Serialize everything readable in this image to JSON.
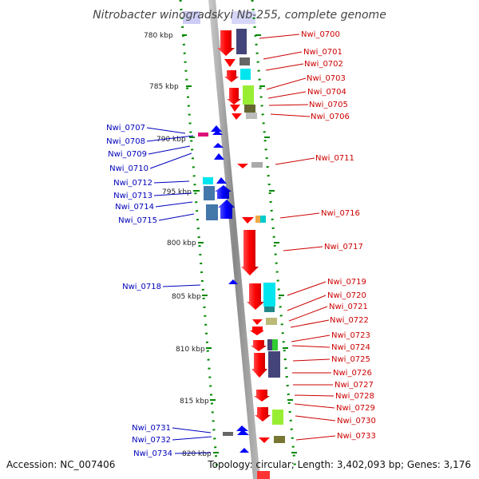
{
  "title": "Nitrobacter winogradskyi Nb-255, complete genome",
  "footer": {
    "accession": "Accession: NC_007406",
    "topology": "Topology: circular; Length: 3,402,093 bp; Genes: 3,176"
  },
  "ticks": [
    "780 kbp",
    "785 kbp",
    "790 kbp",
    "795 kbp",
    "800 kbp",
    "805 kbp",
    "810 kbp",
    "815 kbp",
    "820 kbp"
  ],
  "genes_right": [
    "Nwi_0700",
    "Nwi_0701",
    "Nwi_0702",
    "Nwi_0703",
    "Nwi_0704",
    "Nwi_0705",
    "Nwi_0706",
    "Nwi_0711",
    "Nwi_0716",
    "Nwi_0717",
    "Nwi_0719",
    "Nwi_0720",
    "Nwi_0721",
    "Nwi_0722",
    "Nwi_0723",
    "Nwi_0724",
    "Nwi_0725",
    "Nwi_0726",
    "Nwi_0727",
    "Nwi_0728",
    "Nwi_0729",
    "Nwi_0730",
    "Nwi_0733"
  ],
  "genes_left": [
    "Nwi_0707",
    "Nwi_0708",
    "Nwi_0709",
    "Nwi_0710",
    "Nwi_0712",
    "Nwi_0713",
    "Nwi_0714",
    "Nwi_0715",
    "Nwi_0718",
    "Nwi_0731",
    "Nwi_0732",
    "Nwi_0734"
  ],
  "colors": {
    "forward_strand": "#ff0000",
    "reverse_strand": "#0000ff",
    "backbone": "#999999",
    "tick_marks": "#008800",
    "label_right": "#cc0000",
    "label_left": "#0000bb"
  }
}
